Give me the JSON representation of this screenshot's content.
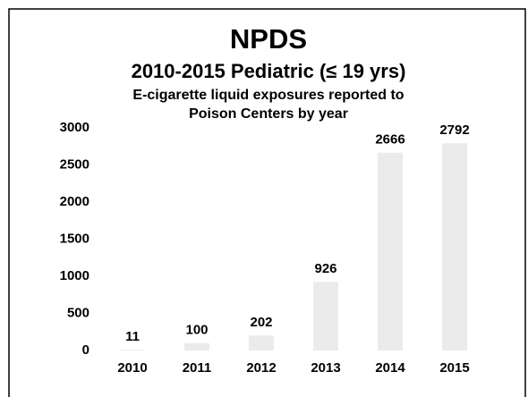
{
  "chart_data": {
    "type": "bar",
    "title": "NPDS",
    "subtitle": "2010-2015 Pediatric (≤ 19 yrs)",
    "description": [
      "E-cigarette liquid exposures reported to",
      "Poison Centers by year"
    ],
    "categories": [
      "2010",
      "2011",
      "2012",
      "2013",
      "2014",
      "2015"
    ],
    "values": [
      11,
      100,
      202,
      926,
      2666,
      2792
    ],
    "color": "#ebebeb",
    "ylim": [
      0,
      3000
    ],
    "yticks": [
      0,
      500,
      1000,
      1500,
      2000,
      2500,
      3000
    ],
    "grid": false
  }
}
